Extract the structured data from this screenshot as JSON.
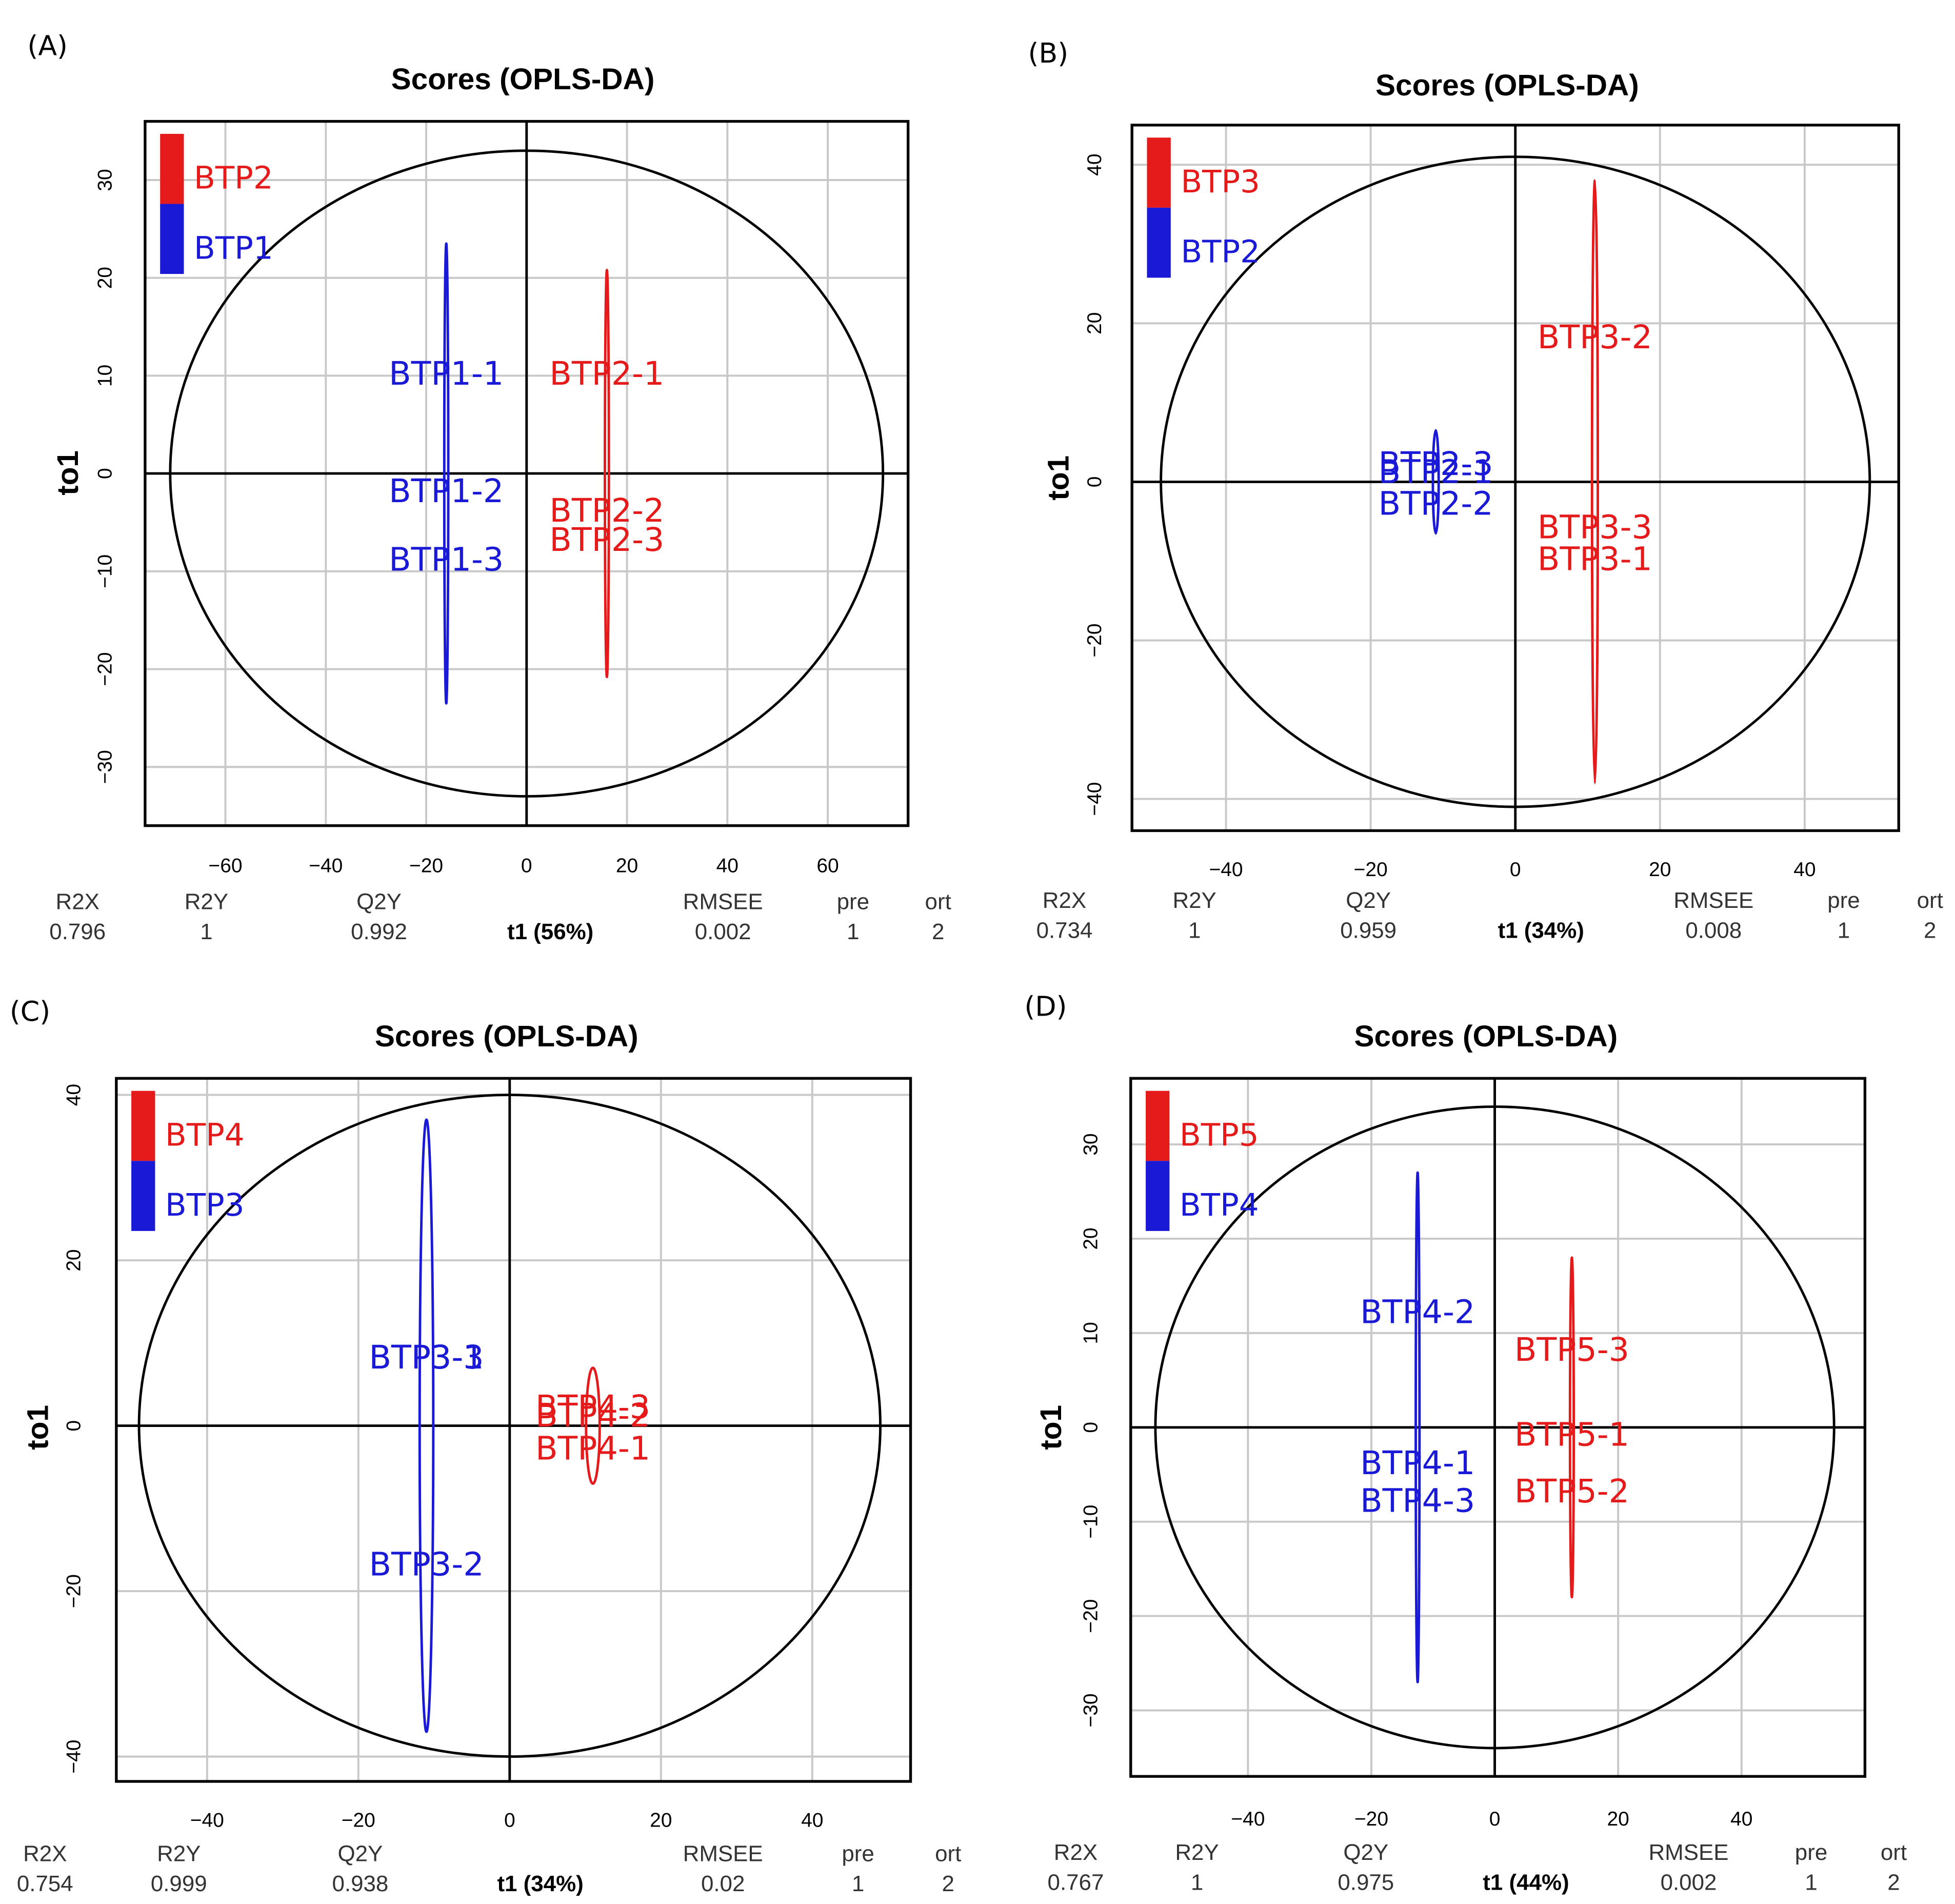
{
  "chart_data": [
    {
      "type": "scatter",
      "panel_label": "(A)",
      "title": "Scores (OPLS-DA)",
      "xlabel": "t1 (56%)",
      "ylabel": "to1",
      "xlim": [
        -76,
        76
      ],
      "ylim": [
        -36,
        36
      ],
      "xticks": [
        -60,
        -40,
        -20,
        0,
        20,
        40,
        60
      ],
      "yticks": [
        -30,
        -20,
        -10,
        0,
        10,
        20,
        30
      ],
      "grid": true,
      "legend": {
        "position": "top-left",
        "entries": [
          {
            "label": "BTP2",
            "color": "#e51b1b"
          },
          {
            "label": "BTP1",
            "color": "#1a1ad6"
          }
        ]
      },
      "series": [
        {
          "name": "BTP1",
          "color": "#1a1ad6",
          "ellipse": {
            "cx": -16,
            "rx": 0.4,
            "ry": 23.5
          },
          "points": [
            {
              "label": "BTP1-1",
              "x": -16,
              "y": 10
            },
            {
              "label": "BTP1-2",
              "x": -16,
              "y": -2
            },
            {
              "label": "BTP1-3",
              "x": -16,
              "y": -9
            }
          ]
        },
        {
          "name": "BTP2",
          "color": "#e51b1b",
          "ellipse": {
            "cx": 16,
            "rx": 0.4,
            "ry": 20.8
          },
          "points": [
            {
              "label": "BTP2-1",
              "x": 16,
              "y": 10
            },
            {
              "label": "BTP2-2",
              "x": 16,
              "y": -4
            },
            {
              "label": "BTP2-3",
              "x": 16,
              "y": -7
            }
          ]
        }
      ],
      "hotelling_ellipse": {
        "rx": 71,
        "ry": 33
      },
      "stats": [
        {
          "label": "R2X",
          "value": "0.796"
        },
        {
          "label": "R2Y",
          "value": "1"
        },
        {
          "label": "Q2Y",
          "value": "0.992"
        },
        {
          "label": "RMSEE",
          "value": "0.002"
        },
        {
          "label": "pre",
          "value": "1"
        },
        {
          "label": "ort",
          "value": "2"
        }
      ]
    },
    {
      "type": "scatter",
      "panel_label": "(B)",
      "title": "Scores (OPLS-DA)",
      "xlabel": "t1 (34%)",
      "ylabel": "to1",
      "xlim": [
        -53,
        53
      ],
      "ylim": [
        -44,
        45
      ],
      "xticks": [
        -40,
        -20,
        0,
        20,
        40
      ],
      "yticks": [
        -40,
        -20,
        0,
        20,
        40
      ],
      "grid": true,
      "legend": {
        "position": "top-left",
        "entries": [
          {
            "label": "BTP3",
            "color": "#e51b1b"
          },
          {
            "label": "BTP2",
            "color": "#1a1ad6"
          }
        ]
      },
      "series": [
        {
          "name": "BTP2",
          "color": "#1a1ad6",
          "ellipse": {
            "cx": -11,
            "rx": 0.4,
            "ry": 6.5
          },
          "points": [
            {
              "label": "BTP2-3",
              "x": -11,
              "y": 2
            },
            {
              "label": "BTP2-1",
              "x": -11,
              "y": 1
            },
            {
              "label": "BTP2-2",
              "x": -11,
              "y": -3
            }
          ]
        },
        {
          "name": "BTP3",
          "color": "#e51b1b",
          "ellipse": {
            "cx": 11,
            "rx": 0.4,
            "ry": 38
          },
          "points": [
            {
              "label": "BTP3-2",
              "x": 11,
              "y": 18
            },
            {
              "label": "BTP3-3",
              "x": 11,
              "y": -6
            },
            {
              "label": "BTP3-1",
              "x": 11,
              "y": -10
            }
          ]
        }
      ],
      "hotelling_ellipse": {
        "rx": 49,
        "ry": 41
      },
      "stats": [
        {
          "label": "R2X",
          "value": "0.734"
        },
        {
          "label": "R2Y",
          "value": "1"
        },
        {
          "label": "Q2Y",
          "value": "0.959"
        },
        {
          "label": "RMSEE",
          "value": "0.008"
        },
        {
          "label": "pre",
          "value": "1"
        },
        {
          "label": "ort",
          "value": "2"
        }
      ]
    },
    {
      "type": "scatter",
      "panel_label": "(C)",
      "title": "Scores (OPLS-DA)",
      "xlabel": "t1 (34%)",
      "ylabel": "to1",
      "xlim": [
        -52,
        53
      ],
      "ylim": [
        -43,
        42
      ],
      "xticks": [
        -40,
        -20,
        0,
        20,
        40
      ],
      "yticks": [
        -40,
        -20,
        0,
        20,
        40
      ],
      "grid": true,
      "legend": {
        "position": "top-left",
        "entries": [
          {
            "label": "BTP4",
            "color": "#e51b1b"
          },
          {
            "label": "BTP3",
            "color": "#1a1ad6"
          }
        ]
      },
      "series": [
        {
          "name": "BTP3",
          "color": "#1a1ad6",
          "ellipse": {
            "cx": -11,
            "rx": 0.9,
            "ry": 37
          },
          "points": [
            {
              "label": "BTP3-3",
              "x": -11,
              "y": 8
            },
            {
              "label": "BTP3-1",
              "x": -11,
              "y": 8
            },
            {
              "label": "BTP3-2",
              "x": -11,
              "y": -17
            }
          ]
        },
        {
          "name": "BTP4",
          "color": "#e51b1b",
          "ellipse": {
            "cx": 11,
            "rx": 0.9,
            "ry": 7
          },
          "points": [
            {
              "label": "BTP4-3",
              "x": 11,
              "y": 2
            },
            {
              "label": "BTP4-2",
              "x": 11,
              "y": 1
            },
            {
              "label": "BTP4-1",
              "x": 11,
              "y": -3
            }
          ]
        }
      ],
      "hotelling_ellipse": {
        "rx": 49,
        "ry": 40
      },
      "stats": [
        {
          "label": "R2X",
          "value": "0.754"
        },
        {
          "label": "R2Y",
          "value": "0.999"
        },
        {
          "label": "Q2Y",
          "value": "0.938"
        },
        {
          "label": "RMSEE",
          "value": "0.02"
        },
        {
          "label": "pre",
          "value": "1"
        },
        {
          "label": "ort",
          "value": "2"
        }
      ]
    },
    {
      "type": "scatter",
      "panel_label": "(D)",
      "title": "Scores (OPLS-DA)",
      "xlabel": "t1 (44%)",
      "ylabel": "to1",
      "xlim": [
        -59,
        60
      ],
      "ylim": [
        -37,
        37
      ],
      "xticks": [
        -40,
        -20,
        0,
        20,
        40
      ],
      "yticks": [
        -30,
        -20,
        -10,
        0,
        10,
        20,
        30
      ],
      "grid": true,
      "legend": {
        "position": "top-left",
        "entries": [
          {
            "label": "BTP5",
            "color": "#e51b1b"
          },
          {
            "label": "BTP4",
            "color": "#1a1ad6"
          }
        ]
      },
      "series": [
        {
          "name": "BTP4",
          "color": "#1a1ad6",
          "ellipse": {
            "cx": -12.5,
            "rx": 0.3,
            "ry": 27
          },
          "points": [
            {
              "label": "BTP4-2",
              "x": -12.5,
              "y": 12
            },
            {
              "label": "BTP4-1",
              "x": -12.5,
              "y": -4
            },
            {
              "label": "BTP4-3",
              "x": -12.5,
              "y": -8
            }
          ]
        },
        {
          "name": "BTP5",
          "color": "#e51b1b",
          "ellipse": {
            "cx": 12.5,
            "rx": 0.3,
            "ry": 18
          },
          "points": [
            {
              "label": "BTP5-3",
              "x": 12.5,
              "y": 8
            },
            {
              "label": "BTP5-1",
              "x": 12.5,
              "y": -1
            },
            {
              "label": "BTP5-2",
              "x": 12.5,
              "y": -7
            }
          ]
        }
      ],
      "hotelling_ellipse": {
        "rx": 55,
        "ry": 34
      },
      "stats": [
        {
          "label": "R2X",
          "value": "0.767"
        },
        {
          "label": "R2Y",
          "value": "1"
        },
        {
          "label": "Q2Y",
          "value": "0.975"
        },
        {
          "label": "RMSEE",
          "value": "0.002"
        },
        {
          "label": "pre",
          "value": "1"
        },
        {
          "label": "ort",
          "value": "2"
        }
      ]
    }
  ]
}
